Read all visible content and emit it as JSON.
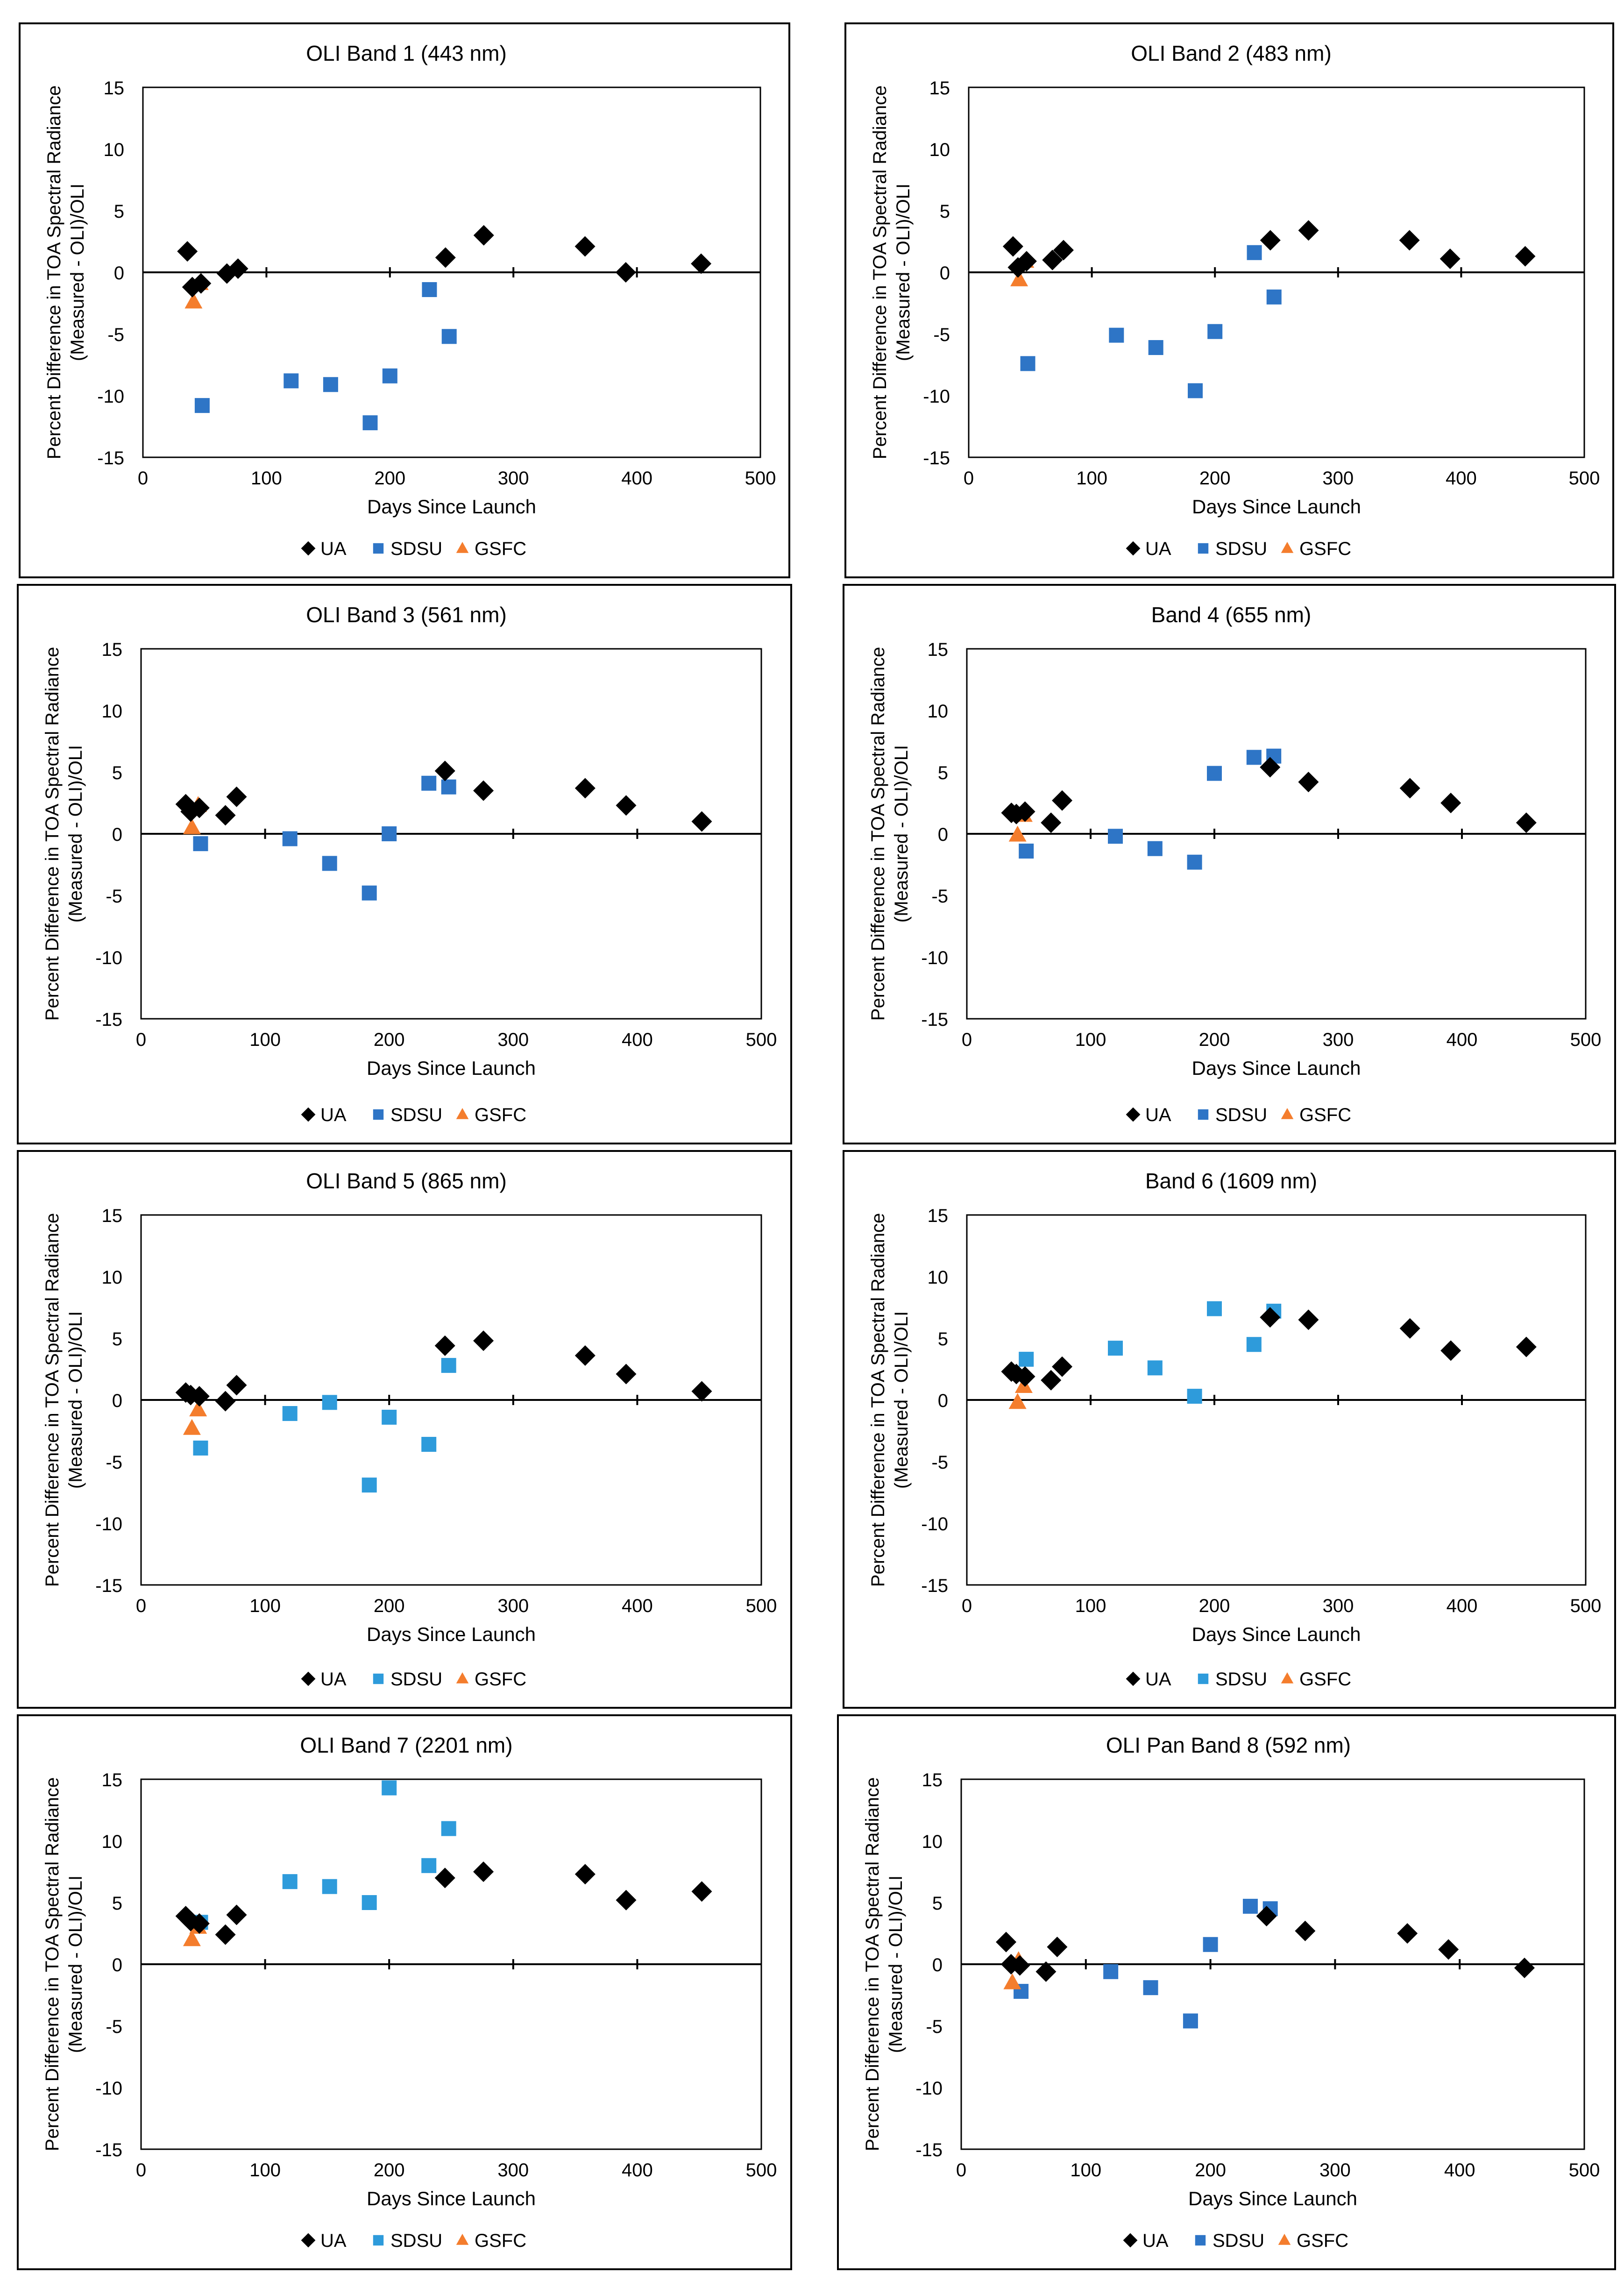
{
  "figure": {
    "colors": {
      "ua": "#000000",
      "sdsu": "#2E75C6",
      "sdsu_light": "#2E9BDB",
      "gsfc": "#F47D2D"
    }
  },
  "chart_data": [
    {
      "type": "scatter",
      "title": "OLI Band 1 (443 nm)",
      "xlabel": "Days Since Launch",
      "ylabel": "Percent Difference in TOA Spectral Radiance (Measured - OLI)/OLI",
      "xlim": [
        0,
        500
      ],
      "ylim": [
        -15,
        15
      ],
      "xticks": [
        0,
        100,
        200,
        300,
        400,
        500
      ],
      "yticks": [
        -15,
        -10,
        -5,
        0,
        5,
        10,
        15
      ],
      "legend": "bottom",
      "series": [
        {
          "name": "UA",
          "marker": "diamond",
          "color": "#000000",
          "points": [
            [
              36,
              1.7
            ],
            [
              40,
              -1.2
            ],
            [
              47,
              -0.9
            ],
            [
              68,
              -0.1
            ],
            [
              77,
              0.3
            ],
            [
              245,
              1.2
            ],
            [
              276,
              3.0
            ],
            [
              358,
              2.1
            ],
            [
              391,
              0.0
            ],
            [
              452,
              0.7
            ]
          ]
        },
        {
          "name": "SDSU",
          "marker": "square",
          "color": "#2E75C6",
          "points": [
            [
              48,
              -10.8
            ],
            [
              120,
              -8.8
            ],
            [
              152,
              -9.1
            ],
            [
              184,
              -12.2
            ],
            [
              200,
              -8.4
            ],
            [
              232,
              -1.4
            ],
            [
              248,
              -5.2
            ]
          ]
        },
        {
          "name": "GSFC",
          "marker": "triangle",
          "color": "#F47D2D",
          "points": [
            [
              41,
              -2.4
            ],
            [
              46,
              -0.9
            ]
          ]
        }
      ]
    },
    {
      "type": "scatter",
      "title": "OLI Band 2 (483 nm)",
      "xlabel": "Days Since Launch",
      "ylabel": "Percent Difference in TOA Spectral Radiance (Measured - OLI)/OLI",
      "xlim": [
        0,
        500
      ],
      "ylim": [
        -15,
        15
      ],
      "xticks": [
        0,
        100,
        200,
        300,
        400,
        500
      ],
      "yticks": [
        -15,
        -10,
        -5,
        0,
        5,
        10,
        15
      ],
      "legend": "bottom",
      "series": [
        {
          "name": "UA",
          "marker": "diamond",
          "color": "#000000",
          "points": [
            [
              36,
              2.1
            ],
            [
              40,
              0.4
            ],
            [
              47,
              0.9
            ],
            [
              68,
              1.0
            ],
            [
              77,
              1.8
            ],
            [
              245,
              2.6
            ],
            [
              276,
              3.4
            ],
            [
              358,
              2.6
            ],
            [
              391,
              1.1
            ],
            [
              452,
              1.3
            ]
          ]
        },
        {
          "name": "SDSU",
          "marker": "square",
          "color": "#2E75C6",
          "points": [
            [
              48,
              -7.4
            ],
            [
              120,
              -5.1
            ],
            [
              152,
              -6.1
            ],
            [
              184,
              -9.6
            ],
            [
              200,
              -4.8
            ],
            [
              232,
              1.6
            ],
            [
              248,
              -2.0
            ]
          ]
        },
        {
          "name": "GSFC",
          "marker": "triangle",
          "color": "#F47D2D",
          "points": [
            [
              41,
              -0.6
            ],
            [
              46,
              0.9
            ]
          ]
        }
      ]
    },
    {
      "type": "scatter",
      "title": "OLI Band 3 (561 nm)",
      "xlabel": "Days Since Launch",
      "ylabel": "Percent Difference in TOA Spectral Radiance (Measured - OLI)/OLI",
      "xlim": [
        0,
        500
      ],
      "ylim": [
        -15,
        15
      ],
      "xticks": [
        0,
        100,
        200,
        300,
        400,
        500
      ],
      "yticks": [
        -15,
        -10,
        -5,
        0,
        5,
        10,
        15
      ],
      "legend": "bottom",
      "series": [
        {
          "name": "UA",
          "marker": "diamond",
          "color": "#000000",
          "points": [
            [
              36,
              2.4
            ],
            [
              40,
              1.8
            ],
            [
              47,
              2.1
            ],
            [
              68,
              1.5
            ],
            [
              77,
              3.0
            ],
            [
              245,
              5.1
            ],
            [
              276,
              3.5
            ],
            [
              358,
              3.7
            ],
            [
              391,
              2.3
            ],
            [
              452,
              1.0
            ]
          ]
        },
        {
          "name": "SDSU",
          "marker": "square",
          "color": "#2E75C6",
          "points": [
            [
              48,
              -0.8
            ],
            [
              120,
              -0.4
            ],
            [
              152,
              -2.4
            ],
            [
              184,
              -4.8
            ],
            [
              200,
              0.0
            ],
            [
              232,
              4.1
            ],
            [
              248,
              3.8
            ]
          ]
        },
        {
          "name": "GSFC",
          "marker": "triangle",
          "color": "#F47D2D",
          "points": [
            [
              41,
              0.5
            ],
            [
              46,
              2.3
            ]
          ]
        }
      ]
    },
    {
      "type": "scatter",
      "title": "Band 4 (655 nm)",
      "xlabel": "Days Since Launch",
      "ylabel": "Percent Difference in TOA Spectral Radiance (Measured - OLI)/OLI",
      "xlim": [
        0,
        500
      ],
      "ylim": [
        -15,
        15
      ],
      "xticks": [
        0,
        100,
        200,
        300,
        400,
        500
      ],
      "yticks": [
        -15,
        -10,
        -5,
        0,
        5,
        10,
        15
      ],
      "legend": "bottom",
      "series": [
        {
          "name": "UA",
          "marker": "diamond",
          "color": "#000000",
          "points": [
            [
              36,
              1.7
            ],
            [
              40,
              1.6
            ],
            [
              47,
              1.8
            ],
            [
              68,
              0.9
            ],
            [
              77,
              2.7
            ],
            [
              245,
              5.4
            ],
            [
              276,
              4.2
            ],
            [
              358,
              3.7
            ],
            [
              391,
              2.5
            ],
            [
              452,
              0.9
            ]
          ]
        },
        {
          "name": "SDSU",
          "marker": "square",
          "color": "#2E75C6",
          "points": [
            [
              48,
              -1.4
            ],
            [
              120,
              -0.2
            ],
            [
              152,
              -1.2
            ],
            [
              184,
              -2.3
            ],
            [
              200,
              4.9
            ],
            [
              232,
              6.2
            ],
            [
              248,
              6.3
            ]
          ]
        },
        {
          "name": "GSFC",
          "marker": "triangle",
          "color": "#F47D2D",
          "points": [
            [
              41,
              -0.1
            ],
            [
              46,
              1.5
            ]
          ]
        }
      ]
    },
    {
      "type": "scatter",
      "title": "OLI Band 5 (865 nm)",
      "xlabel": "Days Since Launch",
      "ylabel": "Percent Difference in TOA Spectral Radiance (Measured - OLI)/OLI",
      "xlim": [
        0,
        500
      ],
      "ylim": [
        -15,
        15
      ],
      "xticks": [
        0,
        100,
        200,
        300,
        400,
        500
      ],
      "yticks": [
        -15,
        -10,
        -5,
        0,
        5,
        10,
        15
      ],
      "legend": "bottom",
      "series": [
        {
          "name": "UA",
          "marker": "diamond",
          "color": "#000000",
          "points": [
            [
              36,
              0.6
            ],
            [
              40,
              0.4
            ],
            [
              47,
              0.3
            ],
            [
              68,
              -0.1
            ],
            [
              77,
              1.2
            ],
            [
              245,
              4.4
            ],
            [
              276,
              4.8
            ],
            [
              358,
              3.6
            ],
            [
              391,
              2.1
            ],
            [
              452,
              0.7
            ]
          ]
        },
        {
          "name": "SDSU",
          "marker": "square",
          "color": "#2E9BDB",
          "points": [
            [
              48,
              -3.9
            ],
            [
              120,
              -1.1
            ],
            [
              152,
              -0.2
            ],
            [
              184,
              -6.9
            ],
            [
              200,
              -1.4
            ],
            [
              232,
              -3.6
            ],
            [
              248,
              2.8
            ]
          ]
        },
        {
          "name": "GSFC",
          "marker": "triangle",
          "color": "#F47D2D",
          "points": [
            [
              41,
              -2.3
            ],
            [
              46,
              -0.8
            ]
          ]
        }
      ]
    },
    {
      "type": "scatter",
      "title": "Band 6 (1609 nm)",
      "xlabel": "Days Since Launch",
      "ylabel": "Percent Difference in TOA Spectral Radiance (Measured - OLI)/OLI",
      "xlim": [
        0,
        500
      ],
      "ylim": [
        -15,
        15
      ],
      "xticks": [
        0,
        100,
        200,
        300,
        400,
        500
      ],
      "yticks": [
        -15,
        -10,
        -5,
        0,
        5,
        10,
        15
      ],
      "legend": "bottom",
      "series": [
        {
          "name": "UA",
          "marker": "diamond",
          "color": "#000000",
          "points": [
            [
              36,
              2.3
            ],
            [
              40,
              2.1
            ],
            [
              47,
              1.9
            ],
            [
              68,
              1.6
            ],
            [
              77,
              2.7
            ],
            [
              245,
              6.7
            ],
            [
              276,
              6.5
            ],
            [
              358,
              5.8
            ],
            [
              391,
              4.0
            ],
            [
              452,
              4.3
            ]
          ]
        },
        {
          "name": "SDSU",
          "marker": "square",
          "color": "#2E9BDB",
          "points": [
            [
              48,
              3.3
            ],
            [
              120,
              4.2
            ],
            [
              152,
              2.6
            ],
            [
              184,
              0.3
            ],
            [
              200,
              7.4
            ],
            [
              232,
              4.5
            ],
            [
              248,
              7.2
            ]
          ]
        },
        {
          "name": "GSFC",
          "marker": "triangle",
          "color": "#F47D2D",
          "points": [
            [
              41,
              -0.2
            ],
            [
              46,
              1.1
            ]
          ]
        }
      ]
    },
    {
      "type": "scatter",
      "title": "OLI Band 7 (2201 nm)",
      "xlabel": "Days Since Launch",
      "ylabel": "Percent Difference in TOA Spectral Radiance (Measured - OLI)/OLI",
      "xlim": [
        0,
        500
      ],
      "ylim": [
        -15,
        15
      ],
      "xticks": [
        0,
        100,
        200,
        300,
        400,
        500
      ],
      "yticks": [
        -15,
        -10,
        -5,
        0,
        5,
        10,
        15
      ],
      "legend": "bottom",
      "series": [
        {
          "name": "UA",
          "marker": "diamond",
          "color": "#000000",
          "points": [
            [
              36,
              3.9
            ],
            [
              40,
              3.5
            ],
            [
              47,
              3.3
            ],
            [
              68,
              2.4
            ],
            [
              77,
              4.0
            ],
            [
              245,
              7.0
            ],
            [
              276,
              7.5
            ],
            [
              358,
              7.3
            ],
            [
              391,
              5.2
            ],
            [
              452,
              5.9
            ]
          ]
        },
        {
          "name": "SDSU",
          "marker": "square",
          "color": "#2E9BDB",
          "points": [
            [
              48,
              3.4
            ],
            [
              120,
              6.7
            ],
            [
              152,
              6.3
            ],
            [
              184,
              5.0
            ],
            [
              200,
              14.3
            ],
            [
              232,
              8.0
            ],
            [
              248,
              11.0
            ]
          ]
        },
        {
          "name": "GSFC",
          "marker": "triangle",
          "color": "#F47D2D",
          "points": [
            [
              41,
              2.0
            ],
            [
              46,
              3.0
            ]
          ]
        }
      ]
    },
    {
      "type": "scatter",
      "title": "OLI Pan Band 8 (592 nm)",
      "xlabel": "Days Since Launch",
      "ylabel": "Percent Difference in TOA Spectral Radiance (Measured - OLI)/OLI",
      "xlim": [
        0,
        500
      ],
      "ylim": [
        -15,
        15
      ],
      "xticks": [
        0,
        100,
        200,
        300,
        400,
        500
      ],
      "yticks": [
        -15,
        -10,
        -5,
        0,
        5,
        10,
        15
      ],
      "legend": "bottom",
      "series": [
        {
          "name": "UA",
          "marker": "diamond",
          "color": "#000000",
          "points": [
            [
              36,
              1.8
            ],
            [
              40,
              0.0
            ],
            [
              47,
              -0.1
            ],
            [
              68,
              -0.6
            ],
            [
              77,
              1.4
            ],
            [
              245,
              3.9
            ],
            [
              276,
              2.7
            ],
            [
              358,
              2.5
            ],
            [
              391,
              1.2
            ],
            [
              452,
              -0.3
            ]
          ]
        },
        {
          "name": "SDSU",
          "marker": "square",
          "color": "#2E75C6",
          "points": [
            [
              48,
              -2.2
            ],
            [
              120,
              -0.6
            ],
            [
              152,
              -1.9
            ],
            [
              184,
              -4.6
            ],
            [
              200,
              1.6
            ],
            [
              232,
              4.7
            ],
            [
              248,
              4.5
            ]
          ]
        },
        {
          "name": "GSFC",
          "marker": "triangle",
          "color": "#F47D2D",
          "points": [
            [
              41,
              -1.5
            ],
            [
              46,
              0.3
            ]
          ]
        }
      ]
    }
  ]
}
